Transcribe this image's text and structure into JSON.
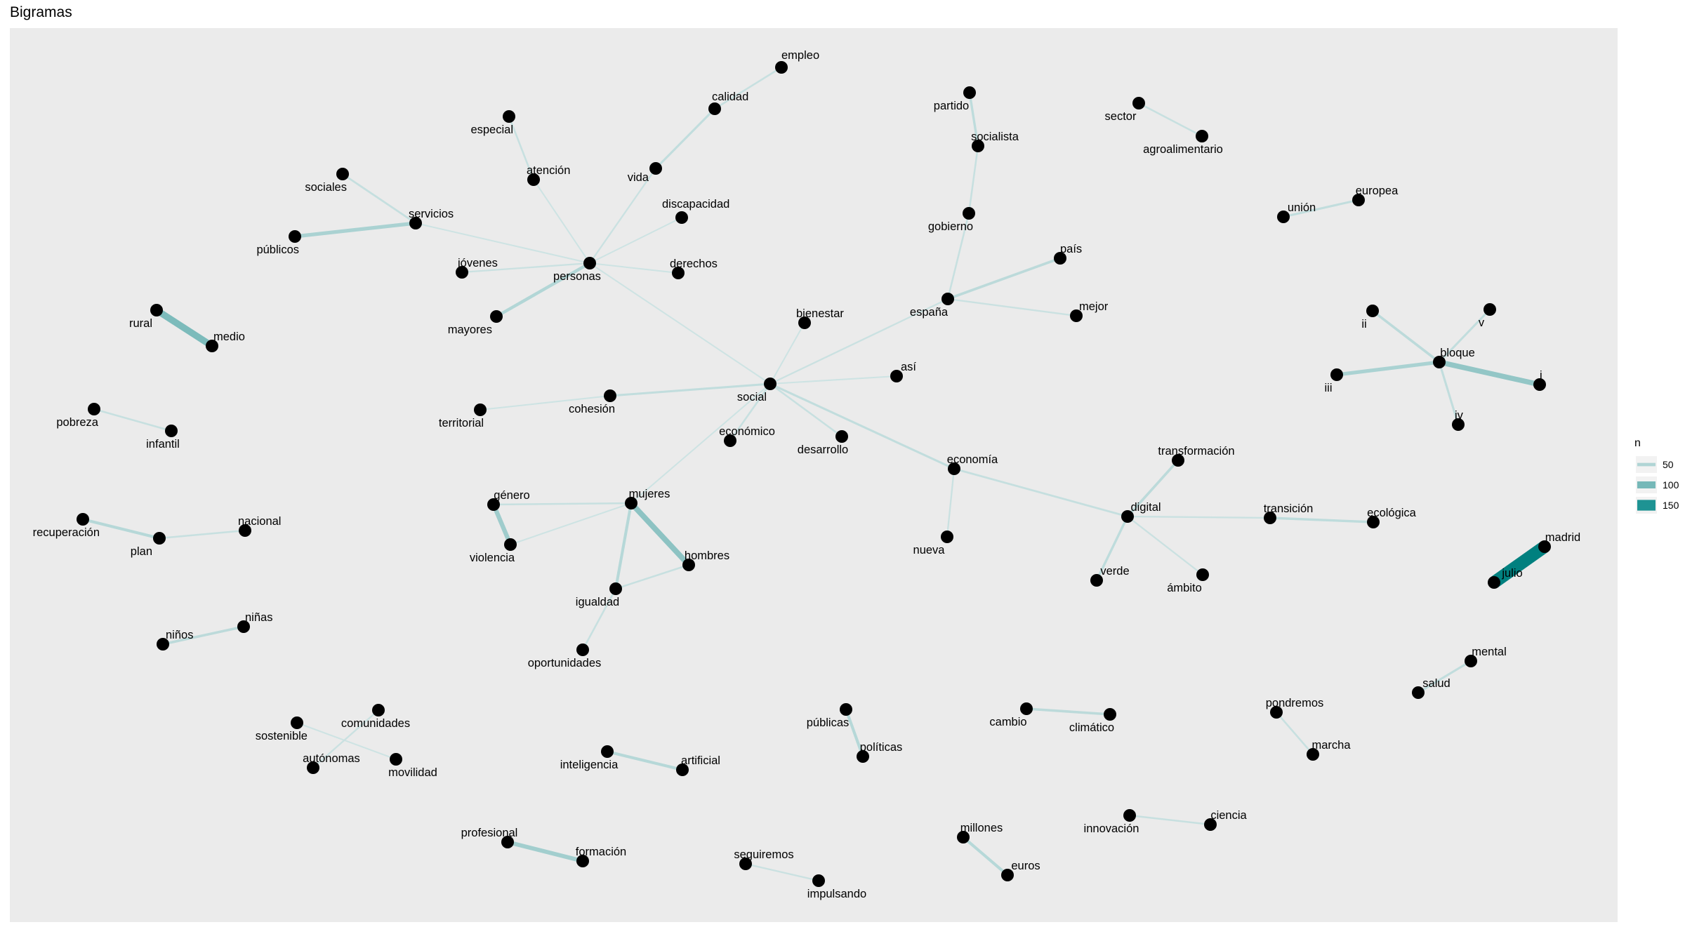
{
  "title": "Bigramas",
  "colors": {
    "panel_bg": "#EBEBEB",
    "node": "#000000",
    "edge_low": "#CDE3E3",
    "edge_mid": "#76B8B8",
    "edge_high": "#1E9393",
    "edge_max": "#00807F"
  },
  "legend": {
    "title": "n",
    "entries": [
      {
        "label": "50",
        "n": 50
      },
      {
        "label": "100",
        "n": 100
      },
      {
        "label": "150",
        "n": 150
      }
    ]
  },
  "nodes": [
    {
      "id": "empleo",
      "label": "empleo"
    },
    {
      "id": "calidad",
      "label": "calidad"
    },
    {
      "id": "vida",
      "label": "vida"
    },
    {
      "id": "especial",
      "label": "especial"
    },
    {
      "id": "atencion",
      "label": "atención"
    },
    {
      "id": "sociales",
      "label": "sociales"
    },
    {
      "id": "servicios",
      "label": "servicios"
    },
    {
      "id": "publicos",
      "label": "públicos"
    },
    {
      "id": "discapacidad",
      "label": "discapacidad"
    },
    {
      "id": "jovenes",
      "label": "jóvenes"
    },
    {
      "id": "personas",
      "label": "personas"
    },
    {
      "id": "derechos",
      "label": "derechos"
    },
    {
      "id": "mayores",
      "label": "mayores"
    },
    {
      "id": "rural",
      "label": "rural"
    },
    {
      "id": "medio",
      "label": "medio"
    },
    {
      "id": "pobreza",
      "label": "pobreza"
    },
    {
      "id": "infantil",
      "label": "infantil"
    },
    {
      "id": "recuperacion",
      "label": "recuperación"
    },
    {
      "id": "plan",
      "label": "plan"
    },
    {
      "id": "nacional",
      "label": "nacional"
    },
    {
      "id": "ninos",
      "label": "niños"
    },
    {
      "id": "ninas",
      "label": "niñas"
    },
    {
      "id": "sostenible",
      "label": "sostenible"
    },
    {
      "id": "comunidades",
      "label": "comunidades"
    },
    {
      "id": "autonomas",
      "label": "autónomas"
    },
    {
      "id": "movilidad",
      "label": "movilidad"
    },
    {
      "id": "partido",
      "label": "partido"
    },
    {
      "id": "socialista",
      "label": "socialista"
    },
    {
      "id": "gobierno",
      "label": "gobierno"
    },
    {
      "id": "espana",
      "label": "españa"
    },
    {
      "id": "pais",
      "label": "país"
    },
    {
      "id": "mejor",
      "label": "mejor"
    },
    {
      "id": "bienestar",
      "label": "bienestar"
    },
    {
      "id": "asi",
      "label": "así"
    },
    {
      "id": "social",
      "label": "social"
    },
    {
      "id": "territorial",
      "label": "territorial"
    },
    {
      "id": "cohesion",
      "label": "cohesión"
    },
    {
      "id": "economico",
      "label": "económico"
    },
    {
      "id": "desarrollo",
      "label": "desarrollo"
    },
    {
      "id": "economia",
      "label": "economía"
    },
    {
      "id": "nueva",
      "label": "nueva"
    },
    {
      "id": "genero",
      "label": "género"
    },
    {
      "id": "mujeres",
      "label": "mujeres"
    },
    {
      "id": "violencia",
      "label": "violencia"
    },
    {
      "id": "hombres",
      "label": "hombres"
    },
    {
      "id": "igualdad",
      "label": "igualdad"
    },
    {
      "id": "oportunidades",
      "label": "oportunidades"
    },
    {
      "id": "sector",
      "label": "sector"
    },
    {
      "id": "agroalimentario",
      "label": "agroalimentario"
    },
    {
      "id": "union",
      "label": "unión"
    },
    {
      "id": "europea",
      "label": "europea"
    },
    {
      "id": "ii",
      "label": "ii"
    },
    {
      "id": "v",
      "label": "v"
    },
    {
      "id": "bloque",
      "label": "bloque"
    },
    {
      "id": "iii",
      "label": "iii"
    },
    {
      "id": "i",
      "label": "i"
    },
    {
      "id": "iv",
      "label": "iv"
    },
    {
      "id": "transformacion",
      "label": "transformación"
    },
    {
      "id": "digital",
      "label": "digital"
    },
    {
      "id": "transicion",
      "label": "transición"
    },
    {
      "id": "ecologica",
      "label": "ecológica"
    },
    {
      "id": "verde",
      "label": "verde"
    },
    {
      "id": "ambito",
      "label": "ámbito"
    },
    {
      "id": "madrid",
      "label": "madrid"
    },
    {
      "id": "julio",
      "label": "julio"
    },
    {
      "id": "mental",
      "label": "mental"
    },
    {
      "id": "salud",
      "label": "salud"
    },
    {
      "id": "pondremos",
      "label": "pondremos"
    },
    {
      "id": "marcha",
      "label": "marcha"
    },
    {
      "id": "publicas",
      "label": "públicas"
    },
    {
      "id": "politicas",
      "label": "políticas"
    },
    {
      "id": "cambio",
      "label": "cambio"
    },
    {
      "id": "climatico",
      "label": "climático"
    },
    {
      "id": "inteligencia",
      "label": "inteligencia"
    },
    {
      "id": "artificial",
      "label": "artificial"
    },
    {
      "id": "profesional",
      "label": "profesional"
    },
    {
      "id": "formacion",
      "label": "formación"
    },
    {
      "id": "seguiremos",
      "label": "seguiremos"
    },
    {
      "id": "impulsando",
      "label": "impulsando"
    },
    {
      "id": "millones",
      "label": "millones"
    },
    {
      "id": "euros",
      "label": "euros"
    },
    {
      "id": "innovacion",
      "label": "innovación"
    },
    {
      "id": "ciencia",
      "label": "ciencia"
    }
  ],
  "edges": [
    {
      "source": "calidad",
      "target": "empleo",
      "n": 30
    },
    {
      "source": "vida",
      "target": "calidad",
      "n": 35
    },
    {
      "source": "personas",
      "target": "vida",
      "n": 28
    },
    {
      "source": "atencion",
      "target": "especial",
      "n": 30
    },
    {
      "source": "personas",
      "target": "atencion",
      "n": 25
    },
    {
      "source": "servicios",
      "target": "sociales",
      "n": 32
    },
    {
      "source": "servicios",
      "target": "publicos",
      "n": 55
    },
    {
      "source": "personas",
      "target": "servicios",
      "n": 25
    },
    {
      "source": "personas",
      "target": "discapacidad",
      "n": 25
    },
    {
      "source": "jovenes",
      "target": "personas",
      "n": 28
    },
    {
      "source": "personas",
      "target": "derechos",
      "n": 25
    },
    {
      "source": "personas",
      "target": "mayores",
      "n": 48
    },
    {
      "source": "social",
      "target": "personas",
      "n": 25
    },
    {
      "source": "rural",
      "target": "medio",
      "n": 95
    },
    {
      "source": "pobreza",
      "target": "infantil",
      "n": 30
    },
    {
      "source": "recuperacion",
      "target": "plan",
      "n": 45
    },
    {
      "source": "plan",
      "target": "nacional",
      "n": 30
    },
    {
      "source": "ninos",
      "target": "ninas",
      "n": 40
    },
    {
      "source": "sostenible",
      "target": "movilidad",
      "n": 25
    },
    {
      "source": "comunidades",
      "target": "autonomas",
      "n": 28
    },
    {
      "source": "partido",
      "target": "socialista",
      "n": 38
    },
    {
      "source": "socialista",
      "target": "gobierno",
      "n": 30
    },
    {
      "source": "gobierno",
      "target": "espana",
      "n": 30
    },
    {
      "source": "espana",
      "target": "pais",
      "n": 40
    },
    {
      "source": "espana",
      "target": "mejor",
      "n": 28
    },
    {
      "source": "social",
      "target": "espana",
      "n": 28
    },
    {
      "source": "social",
      "target": "bienestar",
      "n": 25
    },
    {
      "source": "social",
      "target": "asi",
      "n": 25
    },
    {
      "source": "territorial",
      "target": "cohesion",
      "n": 25
    },
    {
      "source": "cohesion",
      "target": "social",
      "n": 35
    },
    {
      "source": "social",
      "target": "economico",
      "n": 30
    },
    {
      "source": "social",
      "target": "desarrollo",
      "n": 30
    },
    {
      "source": "social",
      "target": "economia",
      "n": 35
    },
    {
      "source": "economia",
      "target": "nueva",
      "n": 28
    },
    {
      "source": "economia",
      "target": "digital",
      "n": 32
    },
    {
      "source": "social",
      "target": "mujeres",
      "n": 25
    },
    {
      "source": "genero",
      "target": "mujeres",
      "n": 30
    },
    {
      "source": "genero",
      "target": "violencia",
      "n": 65
    },
    {
      "source": "mujeres",
      "target": "hombres",
      "n": 80
    },
    {
      "source": "mujeres",
      "target": "igualdad",
      "n": 45
    },
    {
      "source": "mujeres",
      "target": "violencia",
      "n": 25
    },
    {
      "source": "igualdad",
      "target": "hombres",
      "n": 30
    },
    {
      "source": "igualdad",
      "target": "oportunidades",
      "n": 30
    },
    {
      "source": "sector",
      "target": "agroalimentario",
      "n": 30
    },
    {
      "source": "union",
      "target": "europea",
      "n": 35
    },
    {
      "source": "ii",
      "target": "bloque",
      "n": 40
    },
    {
      "source": "v",
      "target": "bloque",
      "n": 35
    },
    {
      "source": "iii",
      "target": "bloque",
      "n": 55
    },
    {
      "source": "bloque",
      "target": "i",
      "n": 75
    },
    {
      "source": "iv",
      "target": "bloque",
      "n": 35
    },
    {
      "source": "digital",
      "target": "transformacion",
      "n": 40
    },
    {
      "source": "digital",
      "target": "transicion",
      "n": 28
    },
    {
      "source": "transicion",
      "target": "ecologica",
      "n": 38
    },
    {
      "source": "verde",
      "target": "digital",
      "n": 38
    },
    {
      "source": "digital",
      "target": "ambito",
      "n": 28
    },
    {
      "source": "julio",
      "target": "madrid",
      "n": 175
    },
    {
      "source": "salud",
      "target": "mental",
      "n": 35
    },
    {
      "source": "pondremos",
      "target": "marcha",
      "n": 30
    },
    {
      "source": "publicas",
      "target": "politicas",
      "n": 45
    },
    {
      "source": "cambio",
      "target": "climatico",
      "n": 40
    },
    {
      "source": "inteligencia",
      "target": "artificial",
      "n": 45
    },
    {
      "source": "profesional",
      "target": "formacion",
      "n": 62
    },
    {
      "source": "seguiremos",
      "target": "impulsando",
      "n": 28
    },
    {
      "source": "millones",
      "target": "euros",
      "n": 45
    },
    {
      "source": "innovacion",
      "target": "ciencia",
      "n": 30
    }
  ]
}
